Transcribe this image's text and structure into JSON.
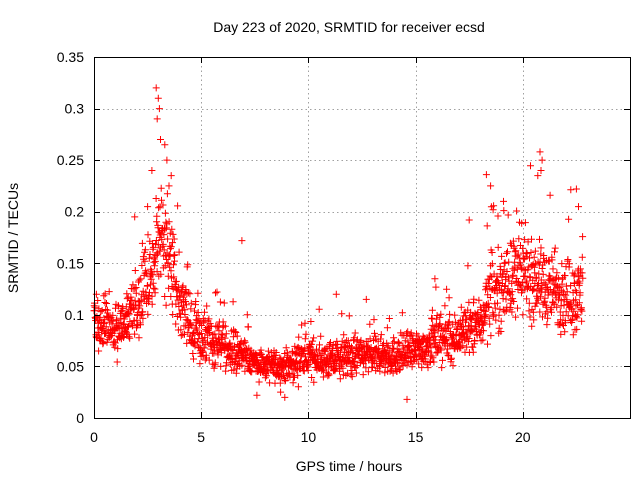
{
  "chart_data": {
    "type": "scatter",
    "title": "Day 223 of 2020, SRMTID for receiver ecsd",
    "xlabel": "GPS time / hours",
    "ylabel": "SRMTID / TECUs",
    "xlim": [
      0,
      25
    ],
    "ylim": [
      0,
      0.35
    ],
    "x_ticks": [
      0,
      5,
      10,
      15,
      20
    ],
    "x_tick_labels": [
      "0",
      "5",
      "10",
      "15",
      "20"
    ],
    "y_ticks": [
      0,
      0.05,
      0.1,
      0.15,
      0.2,
      0.25,
      0.3,
      0.35
    ],
    "y_tick_labels": [
      "0",
      "0.05",
      "0.1",
      "0.15",
      "0.2",
      "0.25",
      "0.3",
      "0.35"
    ],
    "grid": true,
    "marker": "plus",
    "color": "#ff0000",
    "series": [
      {
        "name": "SRMTID",
        "x_end": 22.8,
        "points_count": 2000,
        "profile": [
          [
            0.0,
            0.085
          ],
          [
            0.5,
            0.09
          ],
          [
            1.0,
            0.08
          ],
          [
            1.5,
            0.095
          ],
          [
            2.0,
            0.11
          ],
          [
            2.5,
            0.13
          ],
          [
            3.0,
            0.18
          ],
          [
            3.5,
            0.16
          ],
          [
            4.0,
            0.12
          ],
          [
            4.5,
            0.09
          ],
          [
            5.0,
            0.075
          ],
          [
            6.0,
            0.07
          ],
          [
            7.0,
            0.06
          ],
          [
            8.0,
            0.05
          ],
          [
            9.0,
            0.05
          ],
          [
            10.0,
            0.06
          ],
          [
            11.0,
            0.055
          ],
          [
            12.0,
            0.06
          ],
          [
            13.0,
            0.06
          ],
          [
            14.0,
            0.06
          ],
          [
            15.0,
            0.065
          ],
          [
            16.0,
            0.075
          ],
          [
            17.0,
            0.08
          ],
          [
            18.0,
            0.09
          ],
          [
            18.5,
            0.12
          ],
          [
            19.0,
            0.13
          ],
          [
            20.0,
            0.14
          ],
          [
            21.0,
            0.13
          ],
          [
            22.0,
            0.12
          ],
          [
            22.8,
            0.12
          ]
        ],
        "peak_points": [
          [
            2.9,
            0.32
          ],
          [
            3.0,
            0.31
          ],
          [
            3.05,
            0.3
          ],
          [
            2.95,
            0.29
          ],
          [
            3.1,
            0.27
          ],
          [
            3.3,
            0.265
          ],
          [
            3.4,
            0.25
          ],
          [
            2.7,
            0.24
          ],
          [
            3.6,
            0.235
          ],
          [
            3.5,
            0.225
          ],
          [
            2.5,
            0.205
          ],
          [
            1.9,
            0.195
          ],
          [
            6.9,
            0.172
          ],
          [
            20.8,
            0.258
          ],
          [
            20.9,
            0.25
          ],
          [
            20.85,
            0.24
          ],
          [
            20.7,
            0.235
          ],
          [
            18.3,
            0.236
          ],
          [
            18.5,
            0.225
          ],
          [
            19.1,
            0.21
          ],
          [
            22.5,
            0.222
          ],
          [
            22.6,
            0.205
          ],
          [
            17.5,
            0.192
          ],
          [
            15.9,
            0.135
          ],
          [
            8.9,
            0.02
          ],
          [
            14.6,
            0.018
          ],
          [
            7.6,
            0.022
          ],
          [
            11.3,
            0.12
          ],
          [
            12.7,
            0.115
          ]
        ]
      }
    ]
  }
}
